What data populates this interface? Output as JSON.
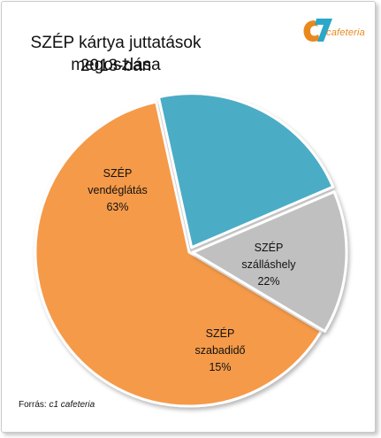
{
  "title_line1": "SZÉP kártya juttatások megoszlása",
  "title_line2": "2013-ban",
  "logo": {
    "text": "cafeteria",
    "colors": {
      "c": "#e8891f",
      "one": "#2aa7c9"
    }
  },
  "source": {
    "label": "Forrás:",
    "value": "c1 cafeteria"
  },
  "chart_data": {
    "type": "pie",
    "title": "SZÉP kártya juttatások megoszlása 2013-ban",
    "slices": [
      {
        "label_line1": "SZÉP",
        "label_line2": "vendéglátás",
        "value": 63,
        "value_label": "63%",
        "color": "#f59a4a"
      },
      {
        "label_line1": "SZÉP",
        "label_line2": "szálláshely",
        "value": 22,
        "value_label": "22%",
        "color": "#4bacc6"
      },
      {
        "label_line1": "SZÉP",
        "label_line2": "szabadidő",
        "value": 15,
        "value_label": "15%",
        "color": "#c0c0c0"
      }
    ],
    "legend": "none",
    "data_labels": "inside"
  }
}
